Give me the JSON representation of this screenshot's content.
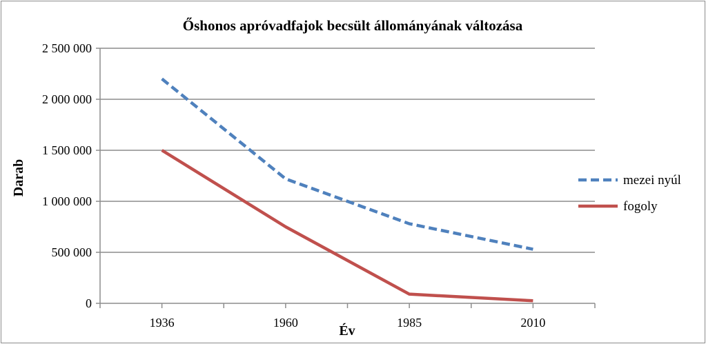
{
  "chart_data": {
    "type": "line",
    "title": "Őshonos apróvadfajok becsült állományának változása",
    "xlabel": "Év",
    "ylabel": "Darab",
    "categories": [
      "1936",
      "1960",
      "1985",
      "2010"
    ],
    "yticks": [
      "0",
      "500 000",
      "1 000 000",
      "1 500 000",
      "2 000 000",
      "2 500 000"
    ],
    "ylim": [
      0,
      2500000
    ],
    "grid": true,
    "legend_position": "right",
    "series": [
      {
        "name": "mezei nyúl",
        "values": [
          2200000,
          1220000,
          780000,
          530000
        ],
        "color": "#4f81bd",
        "style": "dashed"
      },
      {
        "name": "fogoly",
        "values": [
          1500000,
          750000,
          90000,
          25000
        ],
        "color": "#c0504d",
        "style": "solid"
      }
    ]
  }
}
